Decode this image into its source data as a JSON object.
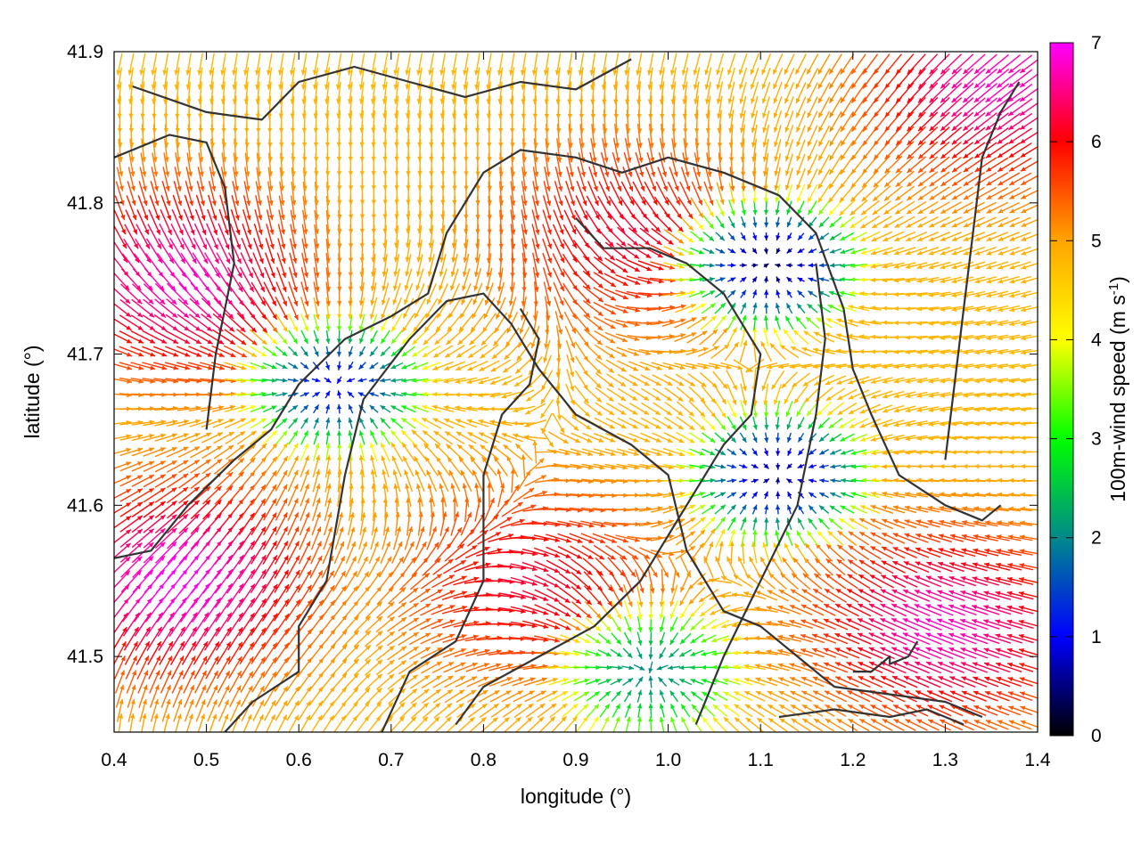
{
  "chart_data": {
    "type": "heatmap",
    "subtype": "wind vector field with terrain contours",
    "title": "",
    "xlabel": "longitude (°)",
    "ylabel": "latitude (°)",
    "xlim": [
      0.4,
      1.4
    ],
    "ylim": [
      41.45,
      41.9
    ],
    "x_ticks": [
      "0.4",
      "0.5",
      "0.6",
      "0.7",
      "0.8",
      "0.9",
      "1.0",
      "1.1",
      "1.2",
      "1.3",
      "1.4"
    ],
    "y_ticks": [
      "41.5",
      "41.6",
      "41.7",
      "41.8",
      "41.9"
    ],
    "grid": false,
    "legend": "none",
    "colorbar": {
      "label": "100m-wind speed (m s",
      "label_sup": "-1",
      "label_end": ")",
      "range": [
        0,
        7
      ],
      "ticks": [
        "0",
        "1",
        "2",
        "3",
        "4",
        "5",
        "6",
        "7"
      ],
      "colormap": [
        "#000000",
        "#0000ff",
        "#008a8a",
        "#00ff00",
        "#ffff00",
        "#ffa500",
        "#ff0000",
        "#ff00ff"
      ]
    },
    "calm_centers": [
      {
        "lon": 1.11,
        "lat": 41.76,
        "speed": 0.4
      },
      {
        "lon": 1.12,
        "lat": 41.62,
        "speed": 0.6
      },
      {
        "lon": 0.64,
        "lat": 41.68,
        "speed": 1.0
      },
      {
        "lon": 0.98,
        "lat": 41.49,
        "speed": 2.0
      }
    ],
    "fast_regions": [
      {
        "lon": 0.47,
        "lat": 41.55,
        "speed": 7.0
      },
      {
        "lon": 0.47,
        "lat": 41.75,
        "speed": 6.8
      },
      {
        "lon": 1.3,
        "lat": 41.52,
        "speed": 6.8
      },
      {
        "lon": 1.36,
        "lat": 41.88,
        "speed": 6.8
      },
      {
        "lon": 0.95,
        "lat": 41.78,
        "speed": 6.2
      },
      {
        "lon": 0.85,
        "lat": 41.55,
        "speed": 6.2
      }
    ],
    "contour_color": "#333333",
    "contours": [
      [
        [
          0.42,
          41.877
        ],
        [
          0.5,
          41.86
        ],
        [
          0.56,
          41.855
        ],
        [
          0.6,
          41.88
        ],
        [
          0.66,
          41.89
        ],
        [
          0.72,
          41.88
        ],
        [
          0.78,
          41.87
        ],
        [
          0.84,
          41.88
        ],
        [
          0.9,
          41.875
        ],
        [
          0.96,
          41.895
        ]
      ],
      [
        [
          0.4,
          41.83
        ],
        [
          0.46,
          41.845
        ],
        [
          0.5,
          41.84
        ],
        [
          0.52,
          41.81
        ],
        [
          0.53,
          41.76
        ],
        [
          0.51,
          41.7
        ],
        [
          0.5,
          41.65
        ]
      ],
      [
        [
          0.52,
          41.45
        ],
        [
          0.55,
          41.47
        ],
        [
          0.6,
          41.49
        ],
        [
          0.6,
          41.52
        ],
        [
          0.63,
          41.55
        ],
        [
          0.65,
          41.62
        ],
        [
          0.67,
          41.67
        ],
        [
          0.72,
          41.71
        ],
        [
          0.76,
          41.735
        ],
        [
          0.8,
          41.74
        ],
        [
          0.83,
          41.72
        ],
        [
          0.86,
          41.69
        ],
        [
          0.9,
          41.66
        ],
        [
          0.96,
          41.64
        ],
        [
          1.0,
          41.62
        ],
        [
          1.02,
          41.57
        ],
        [
          1.06,
          41.53
        ],
        [
          1.1,
          41.52
        ],
        [
          1.14,
          41.5
        ],
        [
          1.18,
          41.48
        ],
        [
          1.24,
          41.475
        ],
        [
          1.3,
          41.47
        ],
        [
          1.34,
          41.46
        ]
      ],
      [
        [
          0.4,
          41.565
        ],
        [
          0.44,
          41.57
        ],
        [
          0.48,
          41.6
        ],
        [
          0.53,
          41.63
        ],
        [
          0.57,
          41.65
        ],
        [
          0.6,
          41.68
        ],
        [
          0.65,
          41.71
        ],
        [
          0.7,
          41.725
        ],
        [
          0.74,
          41.74
        ],
        [
          0.76,
          41.78
        ],
        [
          0.8,
          41.82
        ],
        [
          0.84,
          41.835
        ],
        [
          0.9,
          41.83
        ],
        [
          0.95,
          41.82
        ],
        [
          1.0,
          41.83
        ],
        [
          1.06,
          41.82
        ],
        [
          1.12,
          41.805
        ],
        [
          1.16,
          41.78
        ],
        [
          1.19,
          41.73
        ],
        [
          1.2,
          41.69
        ],
        [
          1.22,
          41.66
        ],
        [
          1.25,
          41.62
        ],
        [
          1.3,
          41.6
        ],
        [
          1.34,
          41.59
        ],
        [
          1.36,
          41.6
        ]
      ],
      [
        [
          0.77,
          41.455
        ],
        [
          0.8,
          41.48
        ],
        [
          0.86,
          41.5
        ],
        [
          0.92,
          41.52
        ],
        [
          0.97,
          41.55
        ],
        [
          1.02,
          41.6
        ],
        [
          1.06,
          41.64
        ],
        [
          1.09,
          41.66
        ],
        [
          1.1,
          41.7
        ],
        [
          1.06,
          41.74
        ],
        [
          1.02,
          41.76
        ],
        [
          0.98,
          41.77
        ],
        [
          0.93,
          41.77
        ],
        [
          0.9,
          41.79
        ]
      ],
      [
        [
          0.69,
          41.45
        ],
        [
          0.72,
          41.49
        ],
        [
          0.77,
          41.51
        ],
        [
          0.8,
          41.55
        ],
        [
          0.8,
          41.62
        ],
        [
          0.82,
          41.66
        ],
        [
          0.85,
          41.68
        ],
        [
          0.86,
          41.71
        ],
        [
          0.84,
          41.73
        ]
      ],
      [
        [
          1.03,
          41.455
        ],
        [
          1.06,
          41.5
        ],
        [
          1.1,
          41.55
        ],
        [
          1.14,
          41.6
        ],
        [
          1.16,
          41.66
        ],
        [
          1.17,
          41.71
        ],
        [
          1.16,
          41.76
        ]
      ],
      [
        [
          1.38,
          41.88
        ],
        [
          1.36,
          41.86
        ],
        [
          1.34,
          41.83
        ],
        [
          1.33,
          41.78
        ],
        [
          1.32,
          41.73
        ],
        [
          1.31,
          41.68
        ],
        [
          1.3,
          41.63
        ]
      ],
      [
        [
          1.2,
          41.49
        ],
        [
          1.22,
          41.49
        ],
        [
          1.24,
          41.5
        ],
        [
          1.24,
          41.495
        ],
        [
          1.26,
          41.5
        ],
        [
          1.27,
          41.51
        ]
      ],
      [
        [
          1.12,
          41.46
        ],
        [
          1.18,
          41.465
        ],
        [
          1.24,
          41.46
        ],
        [
          1.28,
          41.465
        ],
        [
          1.32,
          41.455
        ]
      ]
    ]
  }
}
